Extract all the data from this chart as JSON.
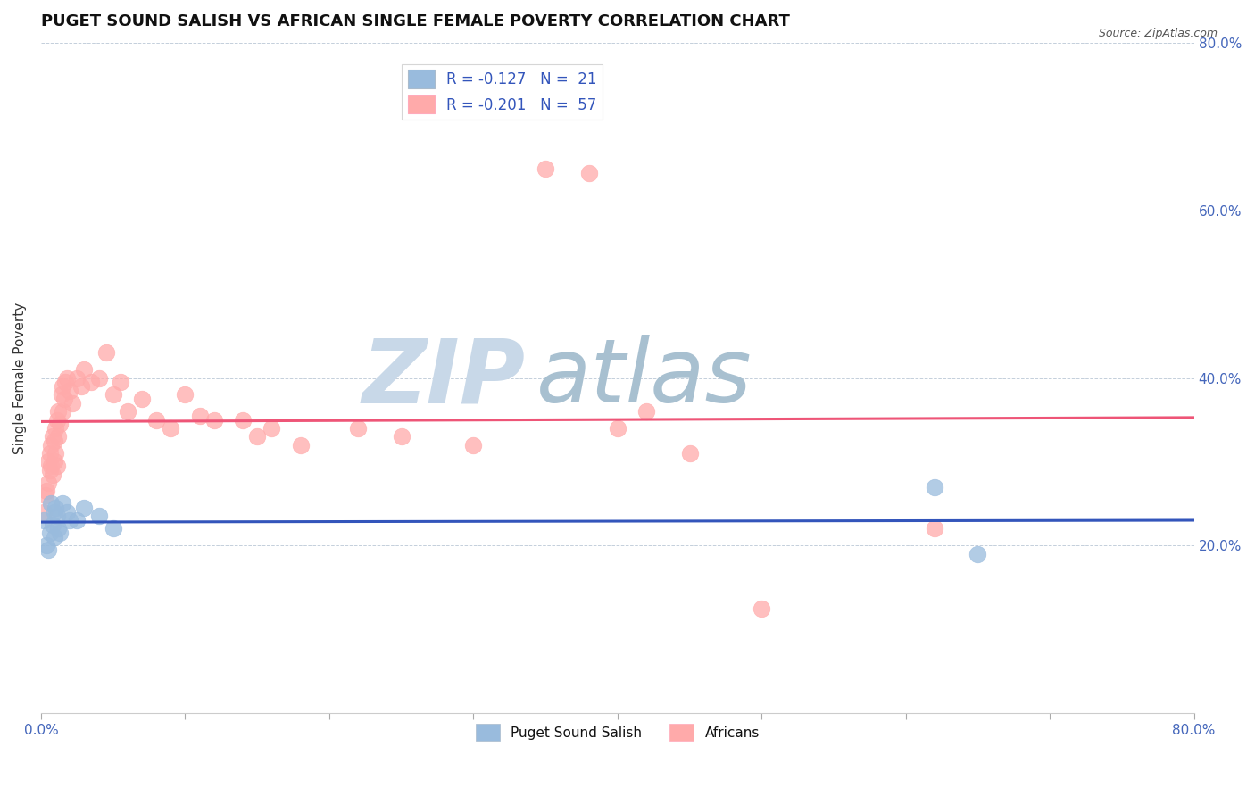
{
  "title": "PUGET SOUND SALISH VS AFRICAN SINGLE FEMALE POVERTY CORRELATION CHART",
  "source": "Source: ZipAtlas.com",
  "ylabel": "Single Female Poverty",
  "xlim": [
    0.0,
    0.8
  ],
  "ylim": [
    0.0,
    0.8
  ],
  "color_blue": "#99BBDD",
  "color_pink": "#FFAAAA",
  "color_line_blue": "#3355BB",
  "color_line_pink": "#EE5577",
  "color_tick_label": "#4466BB",
  "title_color": "#111111",
  "watermark_zip": "ZIP",
  "watermark_atlas": "atlas",
  "watermark_color_zip": "#C8D8E8",
  "watermark_color_atlas": "#A8C0D0",
  "background_color": "#FFFFFF",
  "legend_label_color": "#3355BB",
  "blue_x": [
    0.002,
    0.004,
    0.005,
    0.006,
    0.007,
    0.008,
    0.009,
    0.009,
    0.01,
    0.011,
    0.012,
    0.013,
    0.015,
    0.018,
    0.02,
    0.025,
    0.03,
    0.04,
    0.05,
    0.62,
    0.65
  ],
  "blue_y": [
    0.23,
    0.2,
    0.195,
    0.215,
    0.25,
    0.225,
    0.21,
    0.24,
    0.245,
    0.235,
    0.22,
    0.215,
    0.25,
    0.24,
    0.23,
    0.23,
    0.245,
    0.235,
    0.22,
    0.27,
    0.19
  ],
  "pink_x": [
    0.002,
    0.003,
    0.004,
    0.005,
    0.005,
    0.006,
    0.006,
    0.007,
    0.007,
    0.008,
    0.008,
    0.009,
    0.009,
    0.01,
    0.01,
    0.011,
    0.011,
    0.012,
    0.012,
    0.013,
    0.014,
    0.015,
    0.015,
    0.016,
    0.017,
    0.018,
    0.02,
    0.022,
    0.025,
    0.028,
    0.03,
    0.035,
    0.04,
    0.045,
    0.05,
    0.055,
    0.06,
    0.07,
    0.08,
    0.09,
    0.1,
    0.11,
    0.12,
    0.14,
    0.15,
    0.16,
    0.18,
    0.22,
    0.25,
    0.3,
    0.35,
    0.38,
    0.4,
    0.42,
    0.45,
    0.5,
    0.62
  ],
  "pink_y": [
    0.24,
    0.26,
    0.265,
    0.275,
    0.3,
    0.29,
    0.31,
    0.295,
    0.32,
    0.285,
    0.33,
    0.3,
    0.325,
    0.31,
    0.34,
    0.295,
    0.35,
    0.33,
    0.36,
    0.345,
    0.38,
    0.36,
    0.39,
    0.375,
    0.395,
    0.4,
    0.385,
    0.37,
    0.4,
    0.39,
    0.41,
    0.395,
    0.4,
    0.43,
    0.38,
    0.395,
    0.36,
    0.375,
    0.35,
    0.34,
    0.38,
    0.355,
    0.35,
    0.35,
    0.33,
    0.34,
    0.32,
    0.34,
    0.33,
    0.32,
    0.65,
    0.645,
    0.34,
    0.36,
    0.31,
    0.125,
    0.22
  ]
}
